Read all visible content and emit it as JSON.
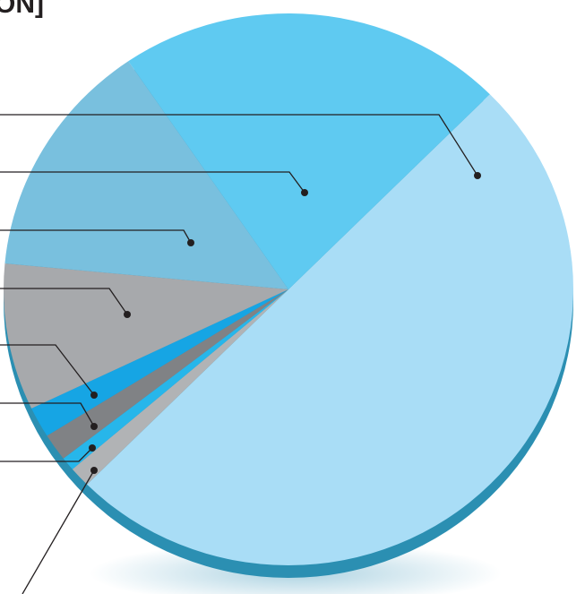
{
  "chart_data": {
    "type": "pie",
    "title": "ON]",
    "values": [
      50,
      1.2,
      0.8,
      1.6,
      1.8,
      8.6,
      14,
      22
    ],
    "colors": [
      "#a9ddf6",
      "#b1b3b5",
      "#27b6ea",
      "#808285",
      "#16a5e4",
      "#a7a9ac",
      "#79c0de",
      "#5fcaf1"
    ]
  }
}
